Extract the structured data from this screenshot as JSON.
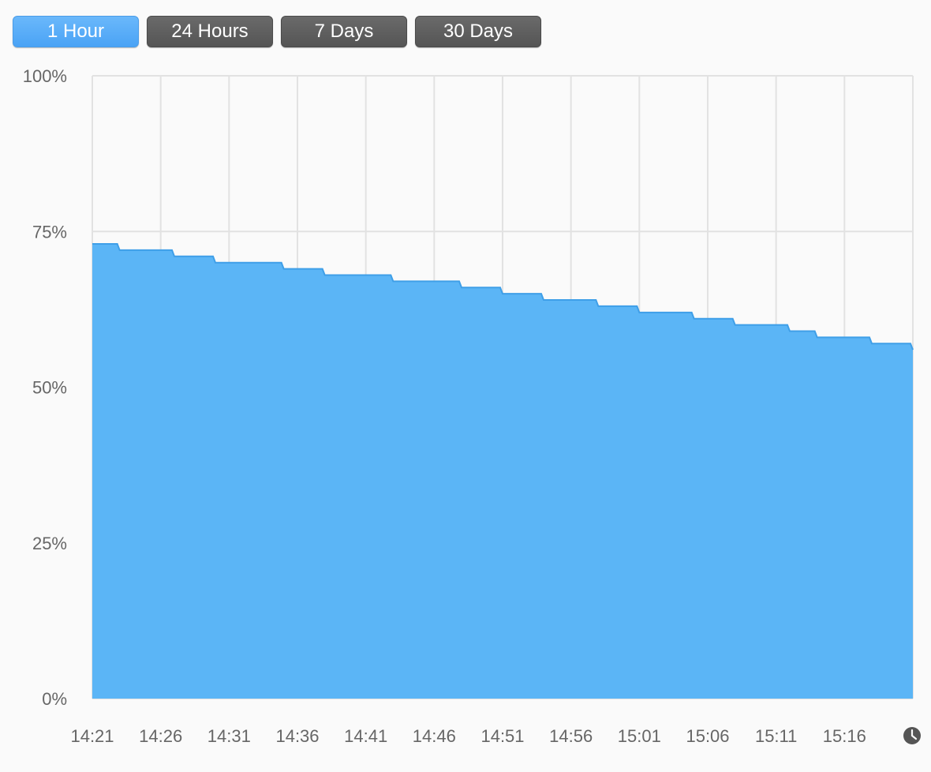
{
  "range_buttons": [
    {
      "label": "1 Hour",
      "active": true
    },
    {
      "label": "24 Hours",
      "active": false
    },
    {
      "label": "7 Days",
      "active": false
    },
    {
      "label": "30 Days",
      "active": false
    }
  ],
  "clock_icon": "clock-icon",
  "colors": {
    "fill": "#5bb5f6",
    "stroke": "#3f9fe8",
    "grid": "#e2e2e2",
    "active_button": "#5aaef8",
    "inactive_button": "#5f5f5f"
  },
  "chart_data": {
    "type": "area",
    "title": "",
    "xlabel": "",
    "ylabel": "",
    "grid": true,
    "ylim": [
      0,
      100
    ],
    "xlim": [
      "14:21",
      "15:21"
    ],
    "y_ticks": [
      0,
      25,
      50,
      75,
      100
    ],
    "y_tick_labels": [
      "0%",
      "25%",
      "50%",
      "75%",
      "100%"
    ],
    "x_tick_labels": [
      "14:21",
      "14:26",
      "14:31",
      "14:36",
      "14:41",
      "14:46",
      "14:51",
      "14:56",
      "15:01",
      "15:06",
      "15:11",
      "15:16"
    ],
    "series": [
      {
        "x": [
          "14:21",
          "14:23",
          "14:27",
          "14:30",
          "14:35",
          "14:38",
          "14:43",
          "14:48",
          "14:51",
          "14:54",
          "14:58",
          "15:01",
          "15:05",
          "15:08",
          "15:12",
          "15:14",
          "15:18",
          "15:21"
        ],
        "values": [
          73,
          72,
          71,
          70,
          69,
          68,
          67,
          66,
          65,
          64,
          63,
          62,
          61,
          60,
          59,
          58,
          57,
          56
        ]
      }
    ]
  }
}
